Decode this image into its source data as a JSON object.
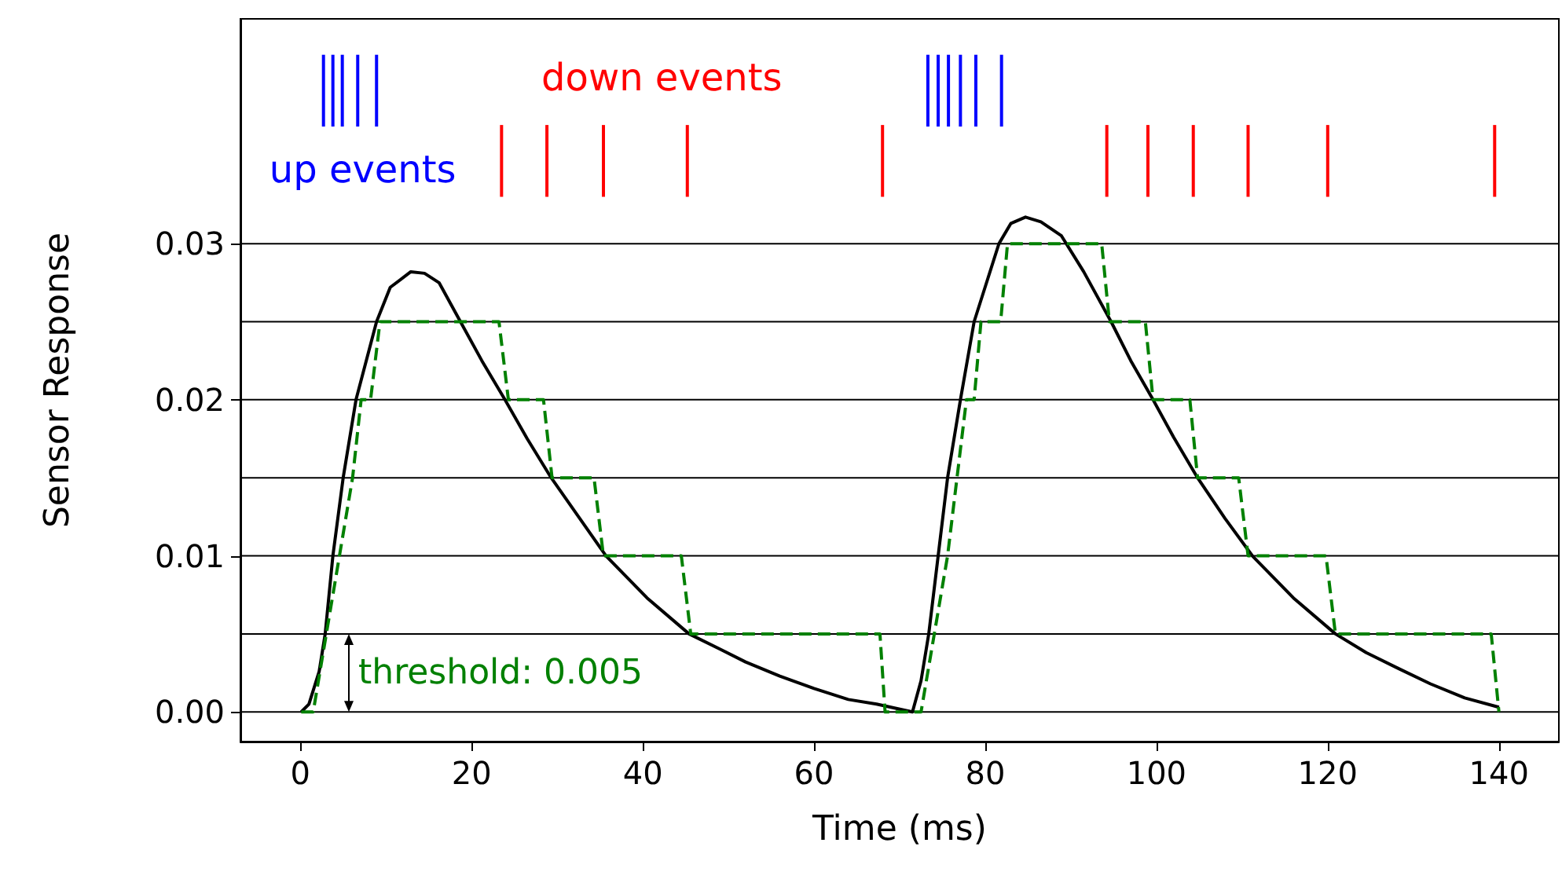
{
  "chart_data": {
    "type": "line",
    "xlabel": "Time (ms)",
    "ylabel": "Sensor Response",
    "xlim": [
      -7,
      147
    ],
    "ylim": [
      -0.0019,
      0.0444
    ],
    "xticks": [
      0,
      20,
      40,
      60,
      80,
      100,
      120,
      140
    ],
    "yticks": [
      {
        "value": 0,
        "label": "0.00"
      },
      {
        "value": 0.01,
        "label": "0.01"
      },
      {
        "value": 0.02,
        "label": "0.02"
      },
      {
        "value": 0.03,
        "label": "0.03"
      }
    ],
    "series": [
      {
        "color": "#000000",
        "line_style": "solid",
        "x": [
          0.1,
          1,
          2.2,
          2.9,
          3.8,
          5.0,
          6.5,
          8.9,
          10.5,
          12.9,
          14.5,
          16.2,
          18.7,
          21.2,
          23.9,
          26.5,
          29.3,
          32.5,
          35.7,
          40.5,
          45.4,
          49.1,
          52,
          56,
          60,
          64,
          67.3,
          71.5,
          72.5,
          73.4,
          74.5,
          75.6,
          77.1,
          78.7,
          81.6,
          83,
          84.7,
          86.5,
          88.9,
          91.5,
          94.7,
          97,
          99.6,
          102,
          104.8,
          108,
          111.2,
          116,
          120.9,
          124.5,
          128.2,
          132,
          136,
          140
        ],
        "values": [
          0,
          0.0005,
          0.0026,
          0.005,
          0.01,
          0.015,
          0.02,
          0.025,
          0.0272,
          0.0282,
          0.0281,
          0.0275,
          0.025,
          0.0225,
          0.02,
          0.0175,
          0.015,
          0.0125,
          0.01,
          0.0073,
          0.005,
          0.004,
          0.0032,
          0.0023,
          0.0015,
          0.0008,
          0.0005,
          0,
          0.002,
          0.005,
          0.01,
          0.015,
          0.02,
          0.025,
          0.03,
          0.0313,
          0.0317,
          0.0314,
          0.0305,
          0.0282,
          0.025,
          0.0225,
          0.02,
          0.0176,
          0.015,
          0.0124,
          0.01,
          0.0073,
          0.005,
          0.0038,
          0.0028,
          0.0018,
          0.0009,
          0.0003
        ]
      },
      {
        "color": "#008000",
        "line_style": "dashed",
        "x": [
          0.1,
          1.5,
          6.1,
          7.1,
          8.2,
          9.3,
          23.2,
          24.3,
          28.4,
          29.4,
          34.3,
          35.4,
          44.5,
          45.6,
          67.7,
          68.3,
          72.5,
          75.6,
          77.8,
          78.7,
          79.5,
          81.8,
          82.6,
          93.6,
          94.5,
          98.7,
          99.6,
          103.9,
          104.8,
          109.6,
          110.7,
          119.8,
          120.9,
          139.1,
          140
        ],
        "values": [
          0,
          0,
          0.015,
          0.02,
          0.02,
          0.025,
          0.025,
          0.02,
          0.02,
          0.015,
          0.015,
          0.01,
          0.01,
          0.005,
          0.005,
          0,
          0,
          0.01,
          0.02,
          0.02,
          0.025,
          0.025,
          0.03,
          0.03,
          0.025,
          0.025,
          0.02,
          0.02,
          0.015,
          0.015,
          0.01,
          0.01,
          0.005,
          0.005,
          0
        ]
      },
      {
        "type": "bar",
        "name": "up events",
        "color": "#0000ff",
        "x": [
          2.7,
          3.8,
          4.9,
          6.7,
          8.9,
          73.3,
          74.5,
          75.7,
          77.1,
          78.9,
          81.9
        ],
        "base": [
          0.0375,
          0.0375,
          0.0375,
          0.0375,
          0.0375,
          0.0375,
          0.0375,
          0.0375,
          0.0375,
          0.0375,
          0.0375
        ],
        "values": [
          0.0046,
          0.0046,
          0.0046,
          0.0046,
          0.0046,
          0.0046,
          0.0046,
          0.0046,
          0.0046,
          0.0046,
          0.0046
        ]
      },
      {
        "type": "bar",
        "name": "down events",
        "color": "#ff0000",
        "x": [
          23.5,
          28.8,
          35.4,
          45.2,
          68.0,
          94.2,
          99.0,
          104.3,
          110.7,
          120.0,
          139.5
        ],
        "base": [
          0.033,
          0.033,
          0.033,
          0.033,
          0.033,
          0.033,
          0.033,
          0.033,
          0.033,
          0.033,
          0.033
        ],
        "values": [
          0.0046,
          0.0046,
          0.0046,
          0.0046,
          0.0046,
          0.0046,
          0.0046,
          0.0046,
          0.0046,
          0.0046,
          0.0046
        ]
      }
    ],
    "ref_lines": [
      {
        "axis": "y",
        "value": 0,
        "color": "#000000"
      },
      {
        "axis": "y",
        "value": 0.005,
        "color": "#000000"
      },
      {
        "axis": "y",
        "value": 0.01,
        "color": "#000000"
      },
      {
        "axis": "y",
        "value": 0.015,
        "color": "#000000"
      },
      {
        "axis": "y",
        "value": 0.02,
        "color": "#000000"
      },
      {
        "axis": "y",
        "value": 0.025,
        "color": "#000000"
      },
      {
        "axis": "y",
        "value": 0.03,
        "color": "#000000"
      }
    ],
    "annotations": [
      "threshold: 0.005"
    ]
  }
}
